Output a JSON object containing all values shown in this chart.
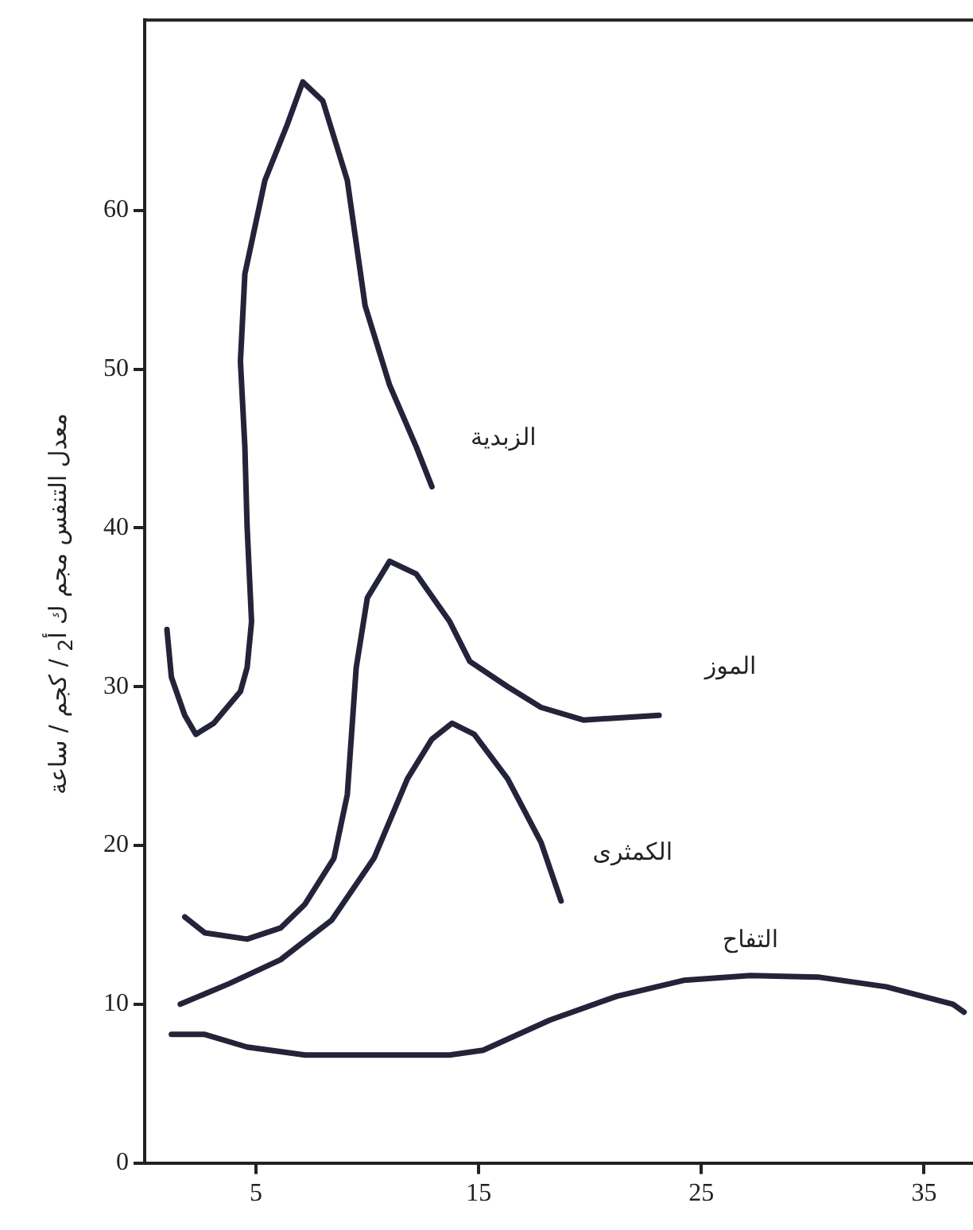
{
  "chart_data": {
    "type": "line",
    "ylabel": "معدل التنفس مجم ك أ$_{2}$ / كجم / ساعة",
    "xlim": [
      0,
      37.2
    ],
    "xticks": [
      5,
      15,
      25,
      35
    ],
    "ylim": [
      0,
      72
    ],
    "yticks": [
      0,
      10,
      20,
      30,
      40,
      50,
      60
    ],
    "grid": false,
    "legend": false,
    "marker": "none",
    "line_style": "solid",
    "series": [
      {
        "name": "الزبدية",
        "color": "#23233a",
        "x": [
          1.0,
          1.2,
          1.8,
          2.3,
          3.1,
          4.3,
          4.6,
          4.8,
          4.6,
          4.5,
          4.3,
          4.5,
          5.4,
          6.4,
          7.1,
          8.0,
          9.1,
          9.9,
          11.0,
          12.2,
          12.9
        ],
        "values": [
          33.6,
          30.6,
          28.2,
          27,
          27.7,
          29.7,
          31.2,
          34.1,
          40.1,
          45.1,
          50.5,
          56,
          61.9,
          65.4,
          68.1,
          66.9,
          61.9,
          54,
          49,
          45.1,
          42.6
        ]
      },
      {
        "name": "الموز",
        "color": "#23233a",
        "x": [
          1.8,
          2.7,
          4.6,
          6.1,
          7.2,
          8.5,
          9.1,
          9.5,
          10.0,
          11.0,
          12.2,
          13.7,
          14.6,
          16.3,
          17.8,
          19.7,
          23.1
        ],
        "values": [
          15.5,
          14.5,
          14.1,
          14.8,
          16.3,
          19.2,
          23.2,
          31.2,
          35.6,
          37.9,
          37.1,
          34.1,
          31.6,
          30,
          28.7,
          27.9,
          28.2
        ]
      },
      {
        "name": "الكمثرى",
        "color": "#23233a",
        "x": [
          1.6,
          3.8,
          6.1,
          8.4,
          10.3,
          11.8,
          12.9,
          13.8,
          14.8,
          16.3,
          17.8,
          18.7
        ],
        "values": [
          10,
          11.3,
          12.8,
          15.3,
          19.2,
          24.2,
          26.7,
          27.7,
          27,
          24.2,
          20.2,
          16.5
        ]
      },
      {
        "name": "التفاح",
        "color": "#23233a",
        "x": [
          1.2,
          2.7,
          4.6,
          7.2,
          9.9,
          13.7,
          15.2,
          18.2,
          21.2,
          24.2,
          27.2,
          30.3,
          33.3,
          36.3,
          36.8
        ],
        "values": [
          8.1,
          8.1,
          7.3,
          6.8,
          6.8,
          6.8,
          7.1,
          9,
          10.5,
          11.5,
          11.8,
          11.7,
          11.1,
          10,
          9.5
        ]
      }
    ]
  }
}
